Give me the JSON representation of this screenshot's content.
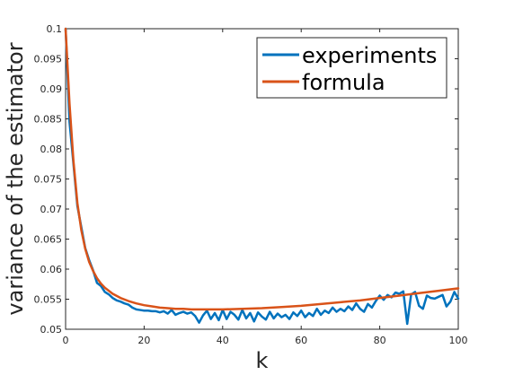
{
  "chart_data": {
    "type": "line",
    "title": "",
    "xlabel": "k",
    "ylabel": "variance of the estimator",
    "xlim": [
      0,
      100
    ],
    "ylim": [
      0.05,
      0.1
    ],
    "xticks": [
      0,
      20,
      40,
      60,
      80,
      100
    ],
    "xtick_labels": [
      "0",
      "20",
      "40",
      "60",
      "80",
      "100"
    ],
    "yticks": [
      0.05,
      0.055,
      0.06,
      0.065,
      0.07,
      0.075,
      0.08,
      0.085,
      0.09,
      0.095,
      0.1
    ],
    "ytick_labels": [
      "0.05",
      "0.055",
      "0.06",
      "0.065",
      "0.07",
      "0.075",
      "0.08",
      "0.085",
      "0.09",
      "0.095",
      "0.1"
    ],
    "grid": false,
    "legend": {
      "position": "top-right"
    },
    "series": [
      {
        "name": "experiments",
        "color": "#0072BD",
        "x": [
          0,
          1,
          2,
          3,
          4,
          5,
          6,
          7,
          8,
          9,
          10,
          11,
          12,
          13,
          14,
          15,
          16,
          17,
          18,
          19,
          20,
          21,
          22,
          23,
          24,
          25,
          26,
          27,
          28,
          29,
          30,
          31,
          32,
          33,
          34,
          35,
          36,
          37,
          38,
          39,
          40,
          41,
          42,
          43,
          44,
          45,
          46,
          47,
          48,
          49,
          50,
          51,
          52,
          53,
          54,
          55,
          56,
          57,
          58,
          59,
          60,
          61,
          62,
          63,
          64,
          65,
          66,
          67,
          68,
          69,
          70,
          71,
          72,
          73,
          74,
          75,
          76,
          77,
          78,
          79,
          80,
          81,
          82,
          83,
          84,
          85,
          86,
          87,
          88,
          89,
          90,
          91,
          92,
          93,
          94,
          95,
          96,
          97,
          98,
          99,
          100
        ],
        "y": [
          0.1,
          0.0845,
          0.0775,
          0.0705,
          0.067,
          0.0635,
          0.0615,
          0.0598,
          0.0577,
          0.0572,
          0.0562,
          0.0558,
          0.0552,
          0.0548,
          0.0546,
          0.0543,
          0.0541,
          0.0536,
          0.0533,
          0.0532,
          0.0531,
          0.0531,
          0.053,
          0.053,
          0.0528,
          0.053,
          0.0526,
          0.0532,
          0.0524,
          0.0527,
          0.0529,
          0.0526,
          0.0528,
          0.0522,
          0.0511,
          0.0523,
          0.0531,
          0.0517,
          0.0527,
          0.0515,
          0.0532,
          0.0517,
          0.0529,
          0.0524,
          0.0516,
          0.0532,
          0.0518,
          0.0527,
          0.0513,
          0.0528,
          0.0521,
          0.0516,
          0.0529,
          0.0518,
          0.0526,
          0.052,
          0.0524,
          0.0517,
          0.0528,
          0.0522,
          0.0531,
          0.052,
          0.0527,
          0.0522,
          0.0534,
          0.0524,
          0.0531,
          0.0527,
          0.0536,
          0.0529,
          0.0534,
          0.053,
          0.0538,
          0.0532,
          0.0543,
          0.0534,
          0.0529,
          0.0542,
          0.0536,
          0.0547,
          0.0556,
          0.0549,
          0.0557,
          0.0553,
          0.0561,
          0.0559,
          0.0563,
          0.0509,
          0.0558,
          0.0562,
          0.0539,
          0.0534,
          0.0556,
          0.0552,
          0.0551,
          0.0554,
          0.0557,
          0.0538,
          0.0546,
          0.0562,
          0.0551
        ]
      },
      {
        "name": "formula",
        "color": "#D95319",
        "x": [
          0,
          1,
          2,
          3,
          4,
          5,
          6,
          7,
          8,
          9,
          10,
          12,
          14,
          16,
          18,
          20,
          22,
          24,
          26,
          28,
          30,
          32,
          34,
          36,
          38,
          40,
          45,
          50,
          55,
          60,
          65,
          70,
          75,
          80,
          85,
          90,
          95,
          100
        ],
        "y": [
          0.1,
          0.0875,
          0.078,
          0.071,
          0.0665,
          0.0634,
          0.0612,
          0.0597,
          0.0585,
          0.0576,
          0.0569,
          0.0559,
          0.0552,
          0.0547,
          0.0543,
          0.054,
          0.0538,
          0.0536,
          0.0535,
          0.0534,
          0.0534,
          0.0533,
          0.0533,
          0.0533,
          0.0533,
          0.0533,
          0.0534,
          0.0535,
          0.0537,
          0.0539,
          0.0542,
          0.0545,
          0.0548,
          0.0552,
          0.0556,
          0.056,
          0.0564,
          0.0568
        ]
      }
    ]
  }
}
